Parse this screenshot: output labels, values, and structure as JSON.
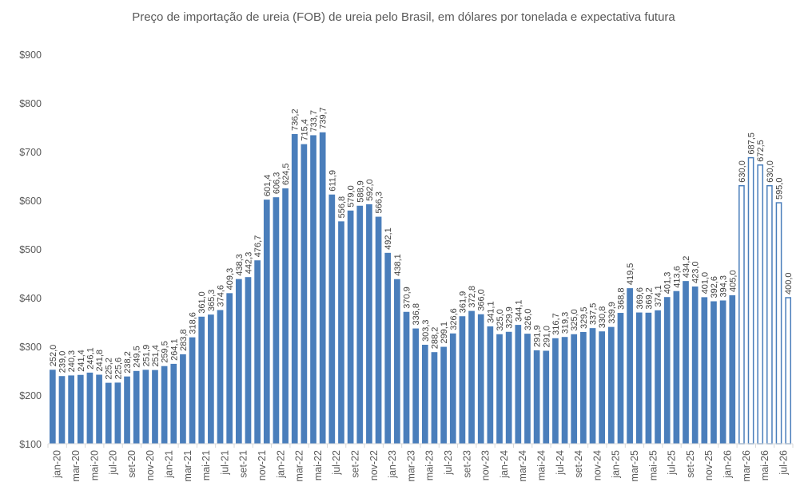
{
  "chart_data": {
    "type": "bar",
    "title": "Preço de importação de ureia (FOB) de ureia pelo Brasil, em dólares por tonelada e expectativa futura",
    "xlabel": "",
    "ylabel": "",
    "ylim": [
      100,
      900
    ],
    "y_ticks": [
      "$100",
      "$200",
      "$300",
      "$400",
      "$500",
      "$600",
      "$700",
      "$800",
      "$900"
    ],
    "grid": false,
    "legend": "none",
    "colors": {
      "bar": "#4a7ebb",
      "outline_fill": "#ffffff",
      "axis": "#d9d9d9"
    },
    "categories": [
      "jan-20",
      "fev-20",
      "mar-20",
      "abr-20",
      "mai-20",
      "jun-20",
      "jul-20",
      "ago-20",
      "set-20",
      "out-20",
      "nov-20",
      "dez-20",
      "jan-21",
      "fev-21",
      "mar-21",
      "abr-21",
      "mai-21",
      "jun-21",
      "jul-21",
      "ago-21",
      "set-21",
      "out-21",
      "nov-21",
      "dez-21",
      "jan-22",
      "fev-22",
      "mar-22",
      "abr-22",
      "mai-22",
      "jun-22",
      "jul-22",
      "ago-22",
      "set-22",
      "out-22",
      "nov-22",
      "dez-22",
      "jan-23",
      "fev-23",
      "mar-23",
      "abr-23",
      "mai-23",
      "jun-23",
      "jul-23",
      "ago-23",
      "set-23",
      "out-23",
      "nov-23",
      "dez-23",
      "jan-24",
      "fev-24",
      "mar-24",
      "abr-24",
      "mai-24",
      "jun-24",
      "jul-24",
      "ago-24",
      "set-24",
      "out-24",
      "nov-24",
      "dez-24",
      "jan-25",
      "fev-25",
      "mar-25",
      "abr-25",
      "mai-25",
      "jun-25",
      "jul-25",
      "ago-25",
      "set-25",
      "out-25",
      "nov-25",
      "dez-25",
      "jan-26",
      "fev-26",
      "mar-26",
      "abr-26",
      "mai-26",
      "jun-26",
      "jul-26",
      "ago-26"
    ],
    "tick_labels": [
      "jan-20",
      "mar-20",
      "mai-20",
      "jul-20",
      "set-20",
      "nov-20",
      "jan-21",
      "mar-21",
      "mai-21",
      "jul-21",
      "set-21",
      "nov-21",
      "jan-22",
      "mar-22",
      "mai-22",
      "jul-22",
      "set-22",
      "nov-22",
      "jan-23",
      "mar-23",
      "mai-23",
      "jul-23",
      "set-23",
      "nov-23",
      "jan-24",
      "mar-24",
      "mai-24",
      "jul-24",
      "set-24",
      "nov-24",
      "jan-25",
      "mar-25",
      "mai-25",
      "jul-25",
      "set-25",
      "nov-25",
      "jan-26",
      "mar-26",
      "mai-26",
      "jul-26"
    ],
    "series": [
      {
        "style": "solid",
        "values": [
          252.0,
          239.0,
          240.3,
          241.4,
          246.1,
          241.8,
          225.2,
          225.6,
          238.2,
          249.5,
          251.9,
          251.4,
          259.5,
          264.1,
          283.8,
          318.6,
          361.0,
          365.3,
          374.6,
          409.3,
          438.3,
          442.3,
          476.7,
          601.4,
          606.3,
          624.5,
          736.2,
          715.4,
          733.7,
          739.7,
          611.9,
          556.8,
          579.0,
          588.9,
          592.0,
          566.3,
          492.1,
          438.1,
          370.9,
          336.8,
          303.3,
          288.2,
          299.1,
          326.6,
          361.9,
          372.8,
          366.0,
          341.1,
          325.0,
          329.9,
          344.1,
          326.0,
          291.9,
          291.0,
          316.7,
          319.3,
          325.0,
          329.5,
          337.5,
          330.8,
          339.9,
          368.8,
          419.5,
          369.6,
          369.2,
          374.1,
          401.3,
          413.6,
          434.2,
          423.0,
          401.0,
          392.6,
          394.3,
          405.0,
          null,
          null,
          null,
          null,
          null,
          null
        ]
      },
      {
        "style": "outline",
        "values": [
          null,
          null,
          null,
          null,
          null,
          null,
          null,
          null,
          null,
          null,
          null,
          null,
          null,
          null,
          null,
          null,
          null,
          null,
          null,
          null,
          null,
          null,
          null,
          null,
          null,
          null,
          null,
          null,
          null,
          null,
          null,
          null,
          null,
          null,
          null,
          null,
          null,
          null,
          null,
          null,
          null,
          null,
          null,
          null,
          null,
          null,
          null,
          null,
          null,
          null,
          null,
          null,
          null,
          null,
          null,
          null,
          null,
          null,
          null,
          null,
          null,
          null,
          null,
          null,
          null,
          null,
          null,
          null,
          null,
          null,
          null,
          null,
          null,
          null,
          630.0,
          687.5,
          672.5,
          630.0,
          595.0,
          400.0
        ]
      }
    ]
  }
}
